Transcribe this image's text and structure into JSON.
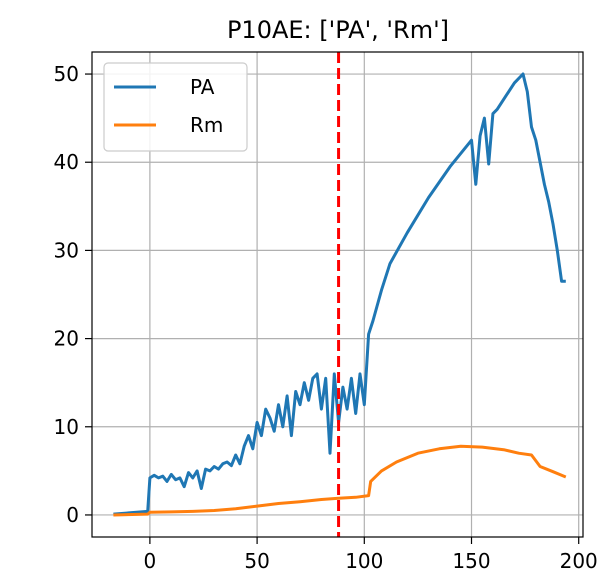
{
  "chart_data": {
    "type": "line",
    "title": "P10AE: ['PA', 'Rm']",
    "xlabel": "",
    "ylabel": "",
    "xlim": [
      -27,
      202
    ],
    "ylim": [
      -2.5,
      52.5
    ],
    "xticks": [
      0,
      50,
      100,
      150,
      200
    ],
    "yticks": [
      0,
      10,
      20,
      30,
      40,
      50
    ],
    "grid": true,
    "legend_position": "upper-left",
    "vline": {
      "x": 88,
      "color": "#ff0000",
      "style": "dashed"
    },
    "series": [
      {
        "name": "PA",
        "color": "#1f77b4",
        "x": [
          -17,
          -1,
          0,
          2,
          4,
          6,
          8,
          10,
          12,
          14,
          16,
          18,
          20,
          22,
          24,
          26,
          28,
          30,
          32,
          34,
          36,
          38,
          40,
          42,
          44,
          46,
          48,
          50,
          52,
          54,
          56,
          58,
          60,
          62,
          64,
          66,
          68,
          70,
          72,
          74,
          76,
          78,
          80,
          82,
          84,
          86,
          88,
          90,
          92,
          94,
          96,
          98,
          100,
          102,
          104,
          108,
          112,
          120,
          130,
          140,
          150,
          152,
          154,
          156,
          158,
          160,
          162,
          166,
          170,
          174,
          176,
          178,
          180,
          182,
          184,
          186,
          188,
          190,
          192,
          194
        ],
        "values": [
          0.1,
          0.4,
          4.2,
          4.5,
          4.2,
          4.4,
          3.8,
          4.6,
          4.0,
          4.2,
          3.2,
          4.8,
          4.2,
          5.0,
          3.0,
          5.2,
          5.0,
          5.5,
          5.2,
          5.8,
          6.0,
          5.6,
          6.8,
          5.8,
          7.8,
          9.0,
          7.5,
          10.5,
          9.0,
          12.0,
          11.0,
          9.5,
          12.5,
          10.0,
          13.5,
          9.0,
          14.0,
          12.5,
          15.0,
          13.0,
          15.5,
          16.0,
          12.0,
          15.5,
          7.0,
          16.0,
          10.5,
          14.5,
          12.0,
          15.5,
          11.5,
          16.0,
          12.5,
          20.5,
          22.0,
          25.5,
          28.5,
          32.0,
          36.0,
          39.5,
          42.5,
          37.5,
          43.0,
          45.0,
          39.8,
          45.5,
          46.0,
          47.5,
          49.0,
          50.0,
          48.0,
          44.0,
          42.5,
          40.0,
          37.5,
          35.5,
          33.0,
          30.0,
          26.5,
          26.5
        ]
      },
      {
        "name": "Rm",
        "color": "#ff7f0e",
        "x": [
          -17,
          -1,
          0,
          10,
          20,
          30,
          40,
          50,
          60,
          70,
          80,
          88,
          96,
          102,
          103,
          108,
          115,
          125,
          135,
          145,
          155,
          165,
          172,
          178,
          182,
          188,
          192,
          194
        ],
        "values": [
          0.0,
          0.1,
          0.3,
          0.35,
          0.4,
          0.5,
          0.7,
          1.0,
          1.3,
          1.5,
          1.75,
          1.9,
          2.0,
          2.2,
          3.8,
          5.0,
          6.0,
          7.0,
          7.5,
          7.8,
          7.7,
          7.4,
          7.0,
          6.8,
          5.5,
          4.9,
          4.5,
          4.3
        ]
      }
    ]
  }
}
